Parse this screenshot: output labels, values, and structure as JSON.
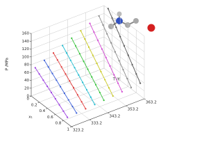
{
  "chart_data": {
    "type": "line3d",
    "x_label": "x₁",
    "t_label": "T /K",
    "y_label": "P /MPa",
    "x": [
      0.1,
      0.2,
      0.3,
      0.4,
      0.5,
      0.6,
      0.7,
      0.8,
      0.9
    ],
    "xlim": [
      0,
      1
    ],
    "xticks": [
      0,
      0.2,
      0.4,
      0.6,
      0.8,
      1
    ],
    "tlim": [
      323.2,
      363.2
    ],
    "tticks": [
      323.2,
      333.2,
      343.2,
      353.2,
      363.2
    ],
    "ylim": [
      0,
      160
    ],
    "yticks": [
      0,
      20,
      40,
      60,
      80,
      100,
      120,
      140,
      160
    ],
    "grid": true,
    "series": [
      {
        "t": 323.2,
        "color": "#9b3fe0",
        "values": [
          80,
          72,
          64,
          56,
          48,
          40,
          32,
          24,
          16
        ]
      },
      {
        "t": 328.2,
        "color": "#3a5fd8",
        "values": [
          90,
          81,
          72,
          63,
          54,
          45,
          36,
          27,
          18
        ]
      },
      {
        "t": 333.2,
        "color": "#e03a3a",
        "values": [
          100,
          90,
          80,
          70,
          60,
          50,
          40,
          30,
          20
        ]
      },
      {
        "t": 338.2,
        "color": "#22bcd0",
        "values": [
          110,
          99,
          88,
          77,
          66,
          55,
          44,
          33,
          22
        ]
      },
      {
        "t": 343.2,
        "color": "#35c23a",
        "values": [
          120,
          108,
          96,
          84,
          72,
          60,
          48,
          36,
          24
        ]
      },
      {
        "t": 348.2,
        "color": "#c9c925",
        "values": [
          130,
          117,
          104,
          91,
          78,
          65,
          52,
          39,
          26
        ]
      },
      {
        "t": 353.2,
        "color": "#d24ad2",
        "values": [
          140,
          126,
          112,
          98,
          84,
          70,
          56,
          42,
          28
        ]
      },
      {
        "t": 358.2,
        "color": "#8a8a8a",
        "values": [
          150,
          135,
          120,
          105,
          90,
          75,
          60,
          45,
          30
        ]
      },
      {
        "t": 363.2,
        "color": "#555555",
        "values": [
          160,
          144,
          128,
          112,
          96,
          80,
          64,
          48,
          32
        ]
      }
    ]
  }
}
